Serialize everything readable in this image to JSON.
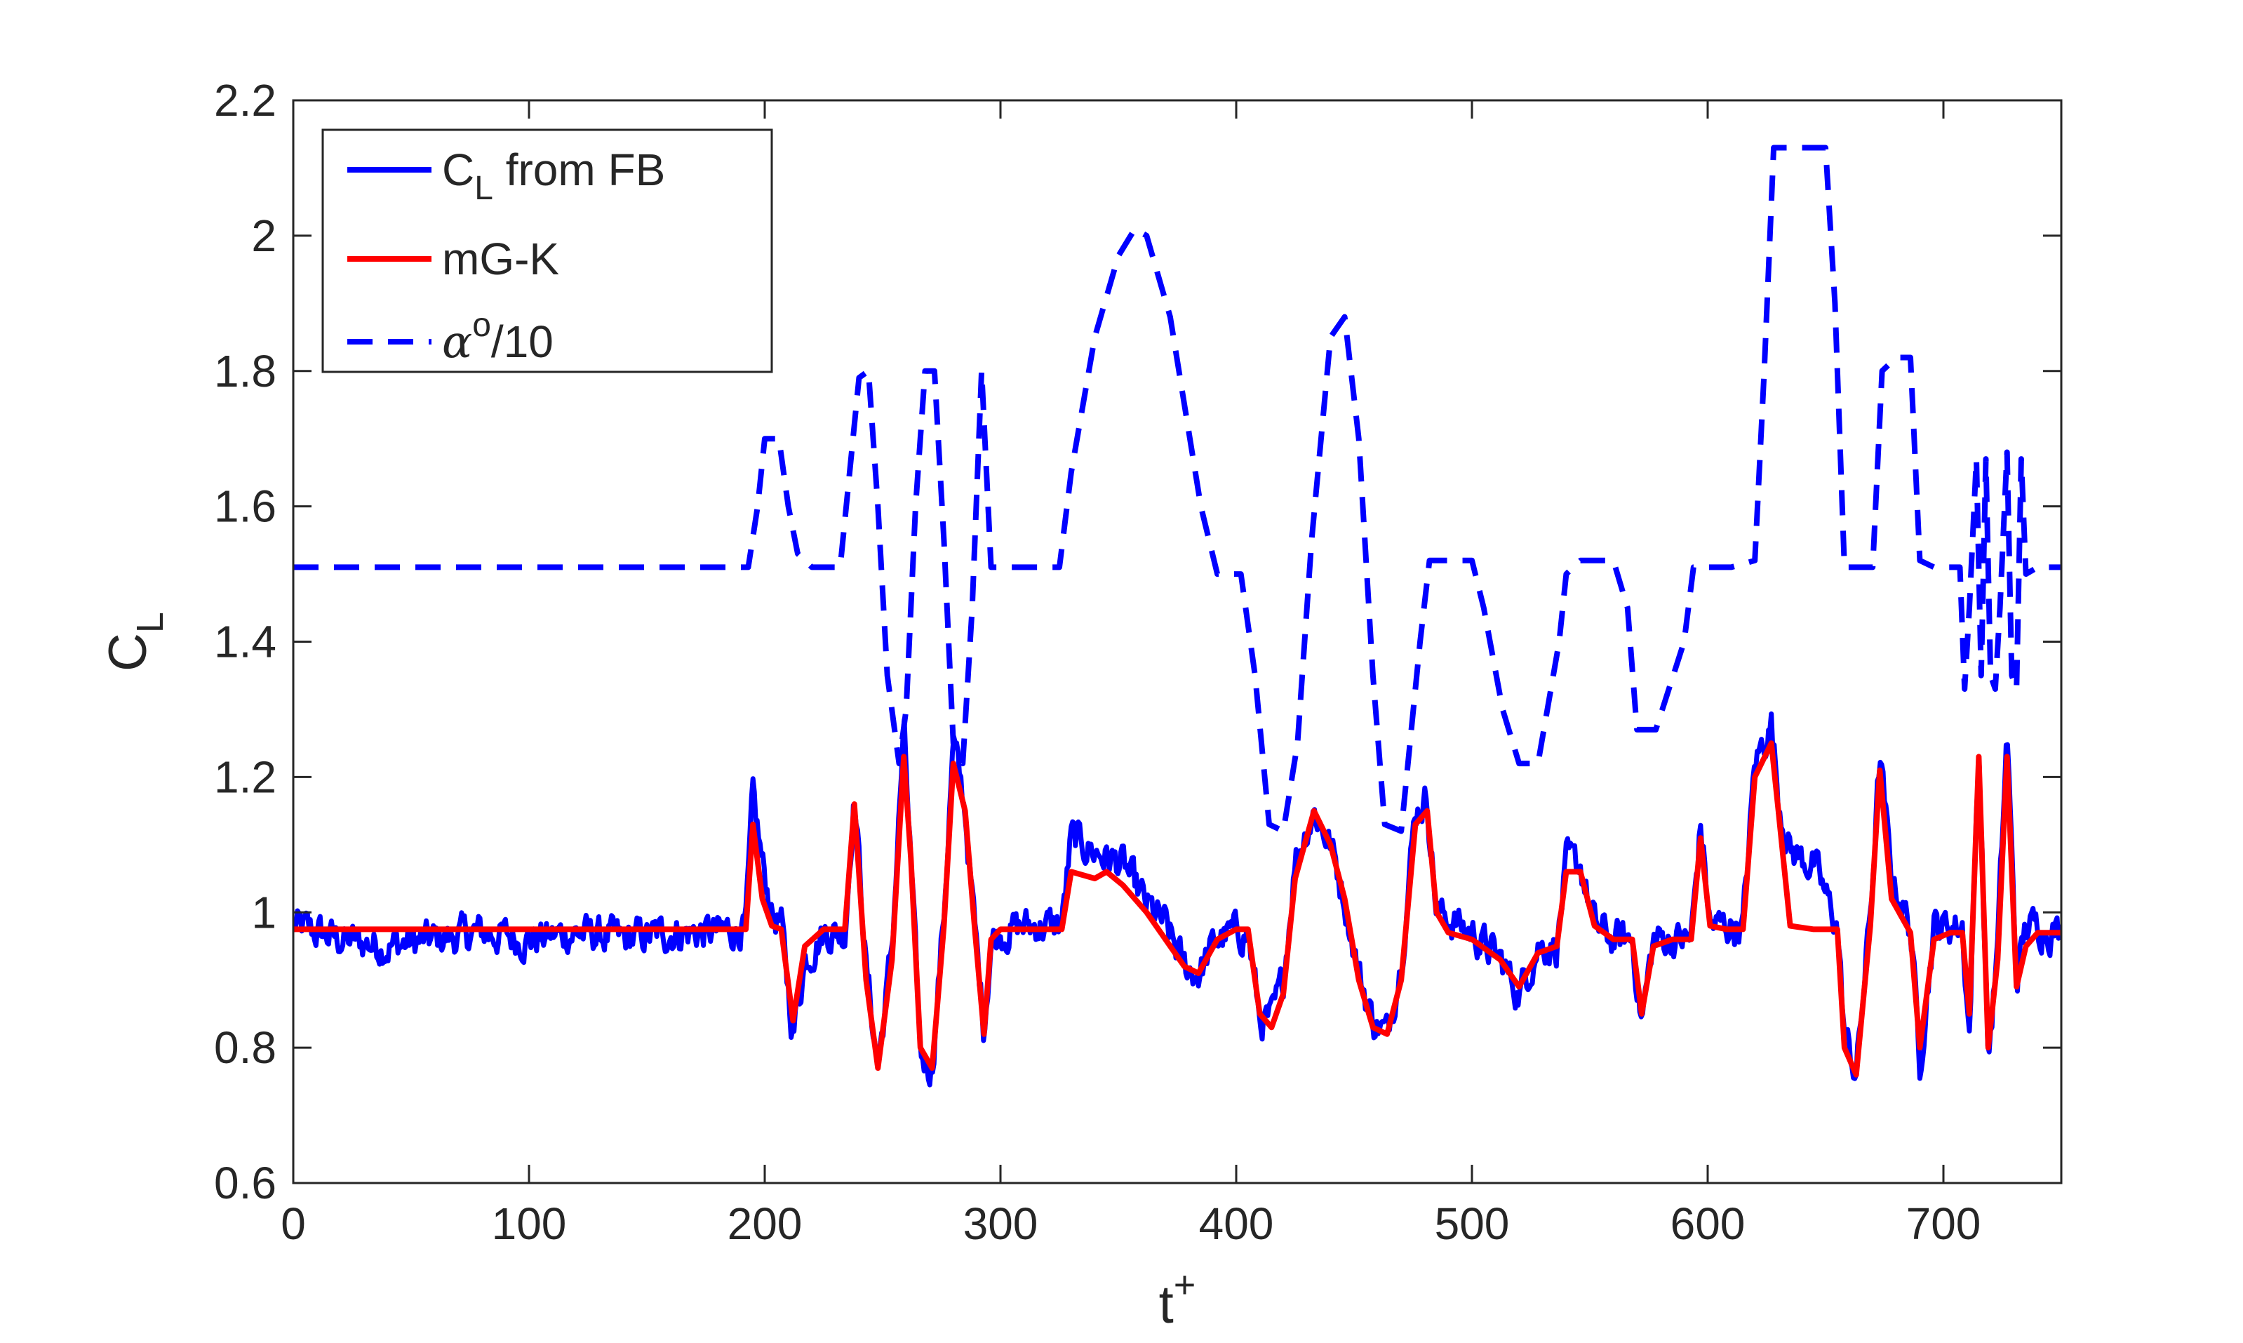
{
  "chart_data": {
    "type": "line",
    "title": "",
    "xlabel": "t",
    "xlabel_superscript": "+",
    "ylabel": "C",
    "ylabel_subscript": "L",
    "xlim": [
      0,
      750
    ],
    "ylim": [
      0.6,
      2.2
    ],
    "xticks": [
      0,
      100,
      200,
      300,
      400,
      500,
      600,
      700
    ],
    "xtick_labels": [
      "0",
      "100",
      "200",
      "300",
      "400",
      "500",
      "600",
      "700"
    ],
    "yticks": [
      0.6,
      0.8,
      1.0,
      1.2,
      1.4,
      1.6,
      1.8,
      2.0,
      2.2
    ],
    "ytick_labels": [
      "0.6",
      "0.8",
      "1",
      "1.2",
      "1.4",
      "1.6",
      "1.8",
      "2",
      "2.2"
    ],
    "grid": false,
    "box": true,
    "legend": {
      "placement": "top-left",
      "entries": [
        {
          "main": "C",
          "sub": "L",
          "rest": " from FB"
        },
        {
          "main": "mG-K",
          "sub": "",
          "rest": ""
        },
        {
          "main": "α",
          "sup": "o",
          "rest": "/10"
        }
      ]
    },
    "series": [
      {
        "name": "C_L from FB",
        "color": "#0000ff",
        "style": "solid",
        "noisy": true,
        "x": [
          0,
          20,
          40,
          60,
          80,
          100,
          120,
          140,
          160,
          180,
          192,
          195,
          199,
          203,
          207,
          212,
          217,
          225,
          234,
          238,
          243,
          248,
          254,
          259,
          262,
          266,
          271,
          276,
          280,
          285,
          289,
          293,
          296,
          300,
          310,
          320,
          326,
          330,
          340,
          352,
          362,
          370,
          378,
          384,
          392,
          400,
          405,
          410,
          415,
          420,
          425,
          433,
          440,
          446,
          452,
          458,
          464,
          470,
          476,
          481,
          485,
          490,
          500,
          512,
          520,
          528,
          536,
          540,
          546,
          552,
          560,
          568,
          572,
          577,
          585,
          593,
          597,
          601,
          608,
          615,
          620,
          627,
          630,
          635,
          645,
          655,
          658,
          663,
          669,
          673,
          678,
          686,
          690,
          696,
          703,
          708,
          711,
          715,
          719,
          723,
          727,
          731,
          735,
          740,
          750
        ],
        "y": [
          0.98,
          0.96,
          0.95,
          0.96,
          0.97,
          0.96,
          0.97,
          0.96,
          0.97,
          0.97,
          0.98,
          1.17,
          1.07,
          1.0,
          0.98,
          0.82,
          0.93,
          0.97,
          0.97,
          1.18,
          0.92,
          0.77,
          0.95,
          1.27,
          1.07,
          0.79,
          0.77,
          1.0,
          1.25,
          1.15,
          0.98,
          0.83,
          0.96,
          0.97,
          0.98,
          0.98,
          0.98,
          1.11,
          1.09,
          1.07,
          1.01,
          0.98,
          0.92,
          0.91,
          0.96,
          0.97,
          0.97,
          0.84,
          0.84,
          0.9,
          1.08,
          1.15,
          1.1,
          1.02,
          0.91,
          0.84,
          0.82,
          0.93,
          1.15,
          1.17,
          1.0,
          0.99,
          0.97,
          0.93,
          0.88,
          0.95,
          0.95,
          1.07,
          1.07,
          0.98,
          0.96,
          0.96,
          0.84,
          0.96,
          0.96,
          0.96,
          1.13,
          0.98,
          0.98,
          0.98,
          1.22,
          1.28,
          1.17,
          1.09,
          1.07,
          0.98,
          0.82,
          0.76,
          1.0,
          1.23,
          1.05,
          0.98,
          0.78,
          0.98,
          0.98,
          0.98,
          0.82,
          1.25,
          0.78,
          0.95,
          1.27,
          0.9,
          0.98,
          0.98,
          0.97
        ]
      },
      {
        "name": "mG-K",
        "color": "#ff0000",
        "style": "solid",
        "noisy": false,
        "x": [
          0,
          50,
          100,
          150,
          192,
          195,
          199,
          203,
          207,
          212,
          217,
          225,
          234,
          238,
          243,
          248,
          254,
          259,
          262,
          266,
          271,
          276,
          280,
          285,
          289,
          293,
          296,
          300,
          310,
          320,
          326,
          330,
          340,
          345,
          352,
          362,
          370,
          378,
          384,
          392,
          400,
          405,
          410,
          415,
          420,
          425,
          433,
          440,
          446,
          452,
          458,
          464,
          470,
          476,
          481,
          485,
          490,
          500,
          512,
          520,
          528,
          536,
          540,
          546,
          552,
          560,
          568,
          572,
          577,
          585,
          593,
          597,
          601,
          608,
          615,
          620,
          627,
          630,
          635,
          645,
          655,
          658,
          663,
          669,
          673,
          678,
          686,
          690,
          696,
          703,
          708,
          711,
          715,
          719,
          723,
          727,
          731,
          735,
          740,
          750
        ],
        "y": [
          0.975,
          0.975,
          0.975,
          0.975,
          0.975,
          1.13,
          1.02,
          0.98,
          0.975,
          0.84,
          0.95,
          0.975,
          0.975,
          1.16,
          0.9,
          0.77,
          0.93,
          1.23,
          1.08,
          0.8,
          0.77,
          0.98,
          1.22,
          1.15,
          0.98,
          0.82,
          0.96,
          0.975,
          0.975,
          0.975,
          0.975,
          1.06,
          1.05,
          1.06,
          1.04,
          1.0,
          0.96,
          0.92,
          0.91,
          0.96,
          0.975,
          0.975,
          0.85,
          0.83,
          0.88,
          1.05,
          1.15,
          1.1,
          1.02,
          0.9,
          0.83,
          0.82,
          0.9,
          1.13,
          1.15,
          1.0,
          0.97,
          0.96,
          0.93,
          0.89,
          0.94,
          0.95,
          1.06,
          1.06,
          0.98,
          0.96,
          0.96,
          0.85,
          0.95,
          0.96,
          0.96,
          1.11,
          0.98,
          0.975,
          0.975,
          1.2,
          1.25,
          1.15,
          0.98,
          0.975,
          0.975,
          0.8,
          0.76,
          0.98,
          1.21,
          1.02,
          0.97,
          0.8,
          0.96,
          0.97,
          0.97,
          0.85,
          1.23,
          0.8,
          0.93,
          1.23,
          0.89,
          0.95,
          0.97,
          0.97
        ]
      },
      {
        "name": "α°/10",
        "color": "#0000ff",
        "style": "dashed",
        "noisy": false,
        "x": [
          0,
          193,
          197,
          200,
          206,
          210,
          214,
          220,
          232,
          236,
          240,
          244,
          248,
          252,
          257,
          260,
          264,
          268,
          272,
          276,
          280,
          284,
          288,
          292,
          296,
          315,
          325,
          330,
          340,
          350,
          357,
          362,
          372,
          385,
          392,
          402,
          408,
          414,
          420,
          426,
          432,
          440,
          446,
          452,
          458,
          463,
          470,
          478,
          482,
          485,
          500,
          505,
          513,
          520,
          528,
          537,
          540,
          546,
          552,
          560,
          566,
          570,
          578,
          590,
          594,
          598,
          610,
          620,
          624,
          628,
          650,
          654,
          658,
          665,
          670,
          674,
          680,
          686,
          690,
          696,
          707,
          709,
          711,
          714,
          716,
          718,
          720,
          722,
          724,
          727,
          729,
          731,
          733,
          735,
          740,
          750
        ],
        "y": [
          1.51,
          1.51,
          1.6,
          1.7,
          1.7,
          1.6,
          1.53,
          1.51,
          1.51,
          1.65,
          1.79,
          1.8,
          1.6,
          1.35,
          1.22,
          1.3,
          1.6,
          1.8,
          1.8,
          1.55,
          1.25,
          1.22,
          1.45,
          1.8,
          1.51,
          1.51,
          1.51,
          1.65,
          1.85,
          1.97,
          2.01,
          2.0,
          1.88,
          1.6,
          1.5,
          1.5,
          1.35,
          1.13,
          1.12,
          1.25,
          1.55,
          1.85,
          1.88,
          1.7,
          1.35,
          1.13,
          1.12,
          1.4,
          1.52,
          1.52,
          1.52,
          1.45,
          1.3,
          1.22,
          1.22,
          1.4,
          1.5,
          1.52,
          1.52,
          1.52,
          1.45,
          1.27,
          1.27,
          1.4,
          1.51,
          1.51,
          1.51,
          1.52,
          1.8,
          2.13,
          2.13,
          1.9,
          1.51,
          1.51,
          1.51,
          1.8,
          1.82,
          1.82,
          1.52,
          1.51,
          1.51,
          1.33,
          1.45,
          1.67,
          1.35,
          1.67,
          1.35,
          1.33,
          1.45,
          1.68,
          1.35,
          1.33,
          1.67,
          1.5,
          1.51,
          1.51
        ]
      }
    ]
  }
}
